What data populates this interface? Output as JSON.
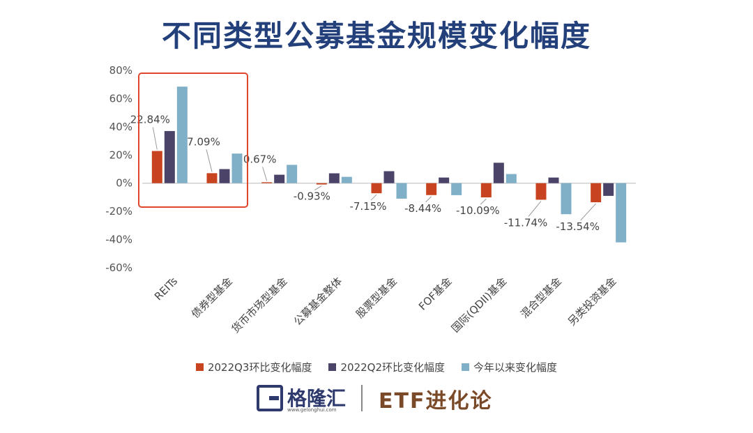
{
  "header": {
    "title": "不同类型公募基金规模变化幅度"
  },
  "chart_data": {
    "type": "bar",
    "categories": [
      "REITs",
      "债券型基金",
      "货币市场型基金",
      "公募基金整体",
      "股票型基金",
      "FOF基金",
      "国际(QDII)基金",
      "混合型基金",
      "另类投资基金"
    ],
    "series": [
      {
        "name": "2022Q3环比变化幅度",
        "color": "#c8431f",
        "values": [
          22.84,
          7.09,
          0.67,
          -0.93,
          -7.15,
          -8.44,
          -10.09,
          -11.74,
          -13.54
        ]
      },
      {
        "name": "2022Q2环比变化幅度",
        "color": "#4c4368",
        "values": [
          37,
          10,
          6,
          7,
          8.5,
          4,
          14.5,
          4,
          -9
        ]
      },
      {
        "name": "今年以来变化幅度",
        "color": "#7fb0c8",
        "values": [
          68.5,
          21,
          13,
          4.5,
          -11,
          -8.5,
          6.5,
          -22,
          -42
        ]
      }
    ],
    "data_labels": [
      "22.84%",
      "7.09%",
      "0.67%",
      "-0.93%",
      "-7.15%",
      "-8.44%",
      "-10.09%",
      "-11.74%",
      "-13.54%"
    ],
    "ylim": [
      -60,
      80
    ],
    "yticks": [
      "80%",
      "60%",
      "40%",
      "20%",
      "0%",
      "-20%",
      "-40%",
      "-60%"
    ],
    "ytick_values": [
      80,
      60,
      40,
      20,
      0,
      -20,
      -40,
      -60
    ],
    "grid": false,
    "legend_position": "bottom",
    "highlight_color": "#e0452a"
  },
  "footer": {
    "brand": "格隆汇",
    "brand_url": "www.gelonghui.com",
    "partner": "ETF进化论"
  }
}
